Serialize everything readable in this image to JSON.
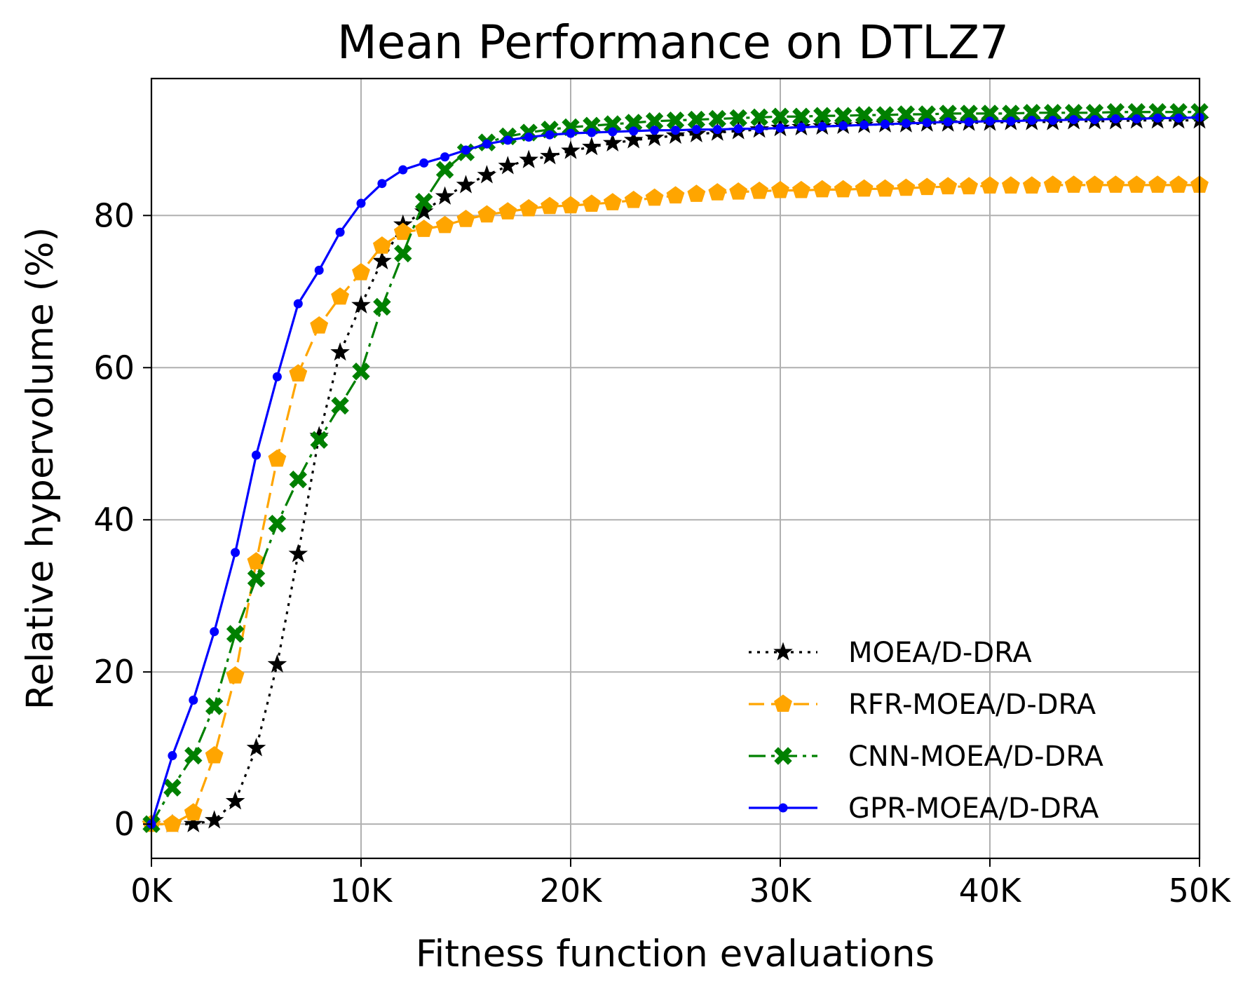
{
  "chart_data": {
    "type": "line",
    "title": "Mean Performance on DTLZ7",
    "xlabel": "Fitness function evaluations",
    "ylabel": "Relative hypervolume (%)",
    "xlim": [
      0,
      50000
    ],
    "ylim": [
      -4.5,
      98
    ],
    "xticks": [
      0,
      10000,
      20000,
      30000,
      40000,
      50000
    ],
    "xtick_labels": [
      "0K",
      "10K",
      "20K",
      "30K",
      "40K",
      "50K"
    ],
    "yticks": [
      0,
      20,
      40,
      60,
      80
    ],
    "ytick_labels": [
      "0",
      "20",
      "40",
      "60",
      "80"
    ],
    "grid": true,
    "legend_position": "lower-right",
    "x": [
      0,
      1000,
      2000,
      3000,
      4000,
      5000,
      6000,
      7000,
      8000,
      9000,
      10000,
      11000,
      12000,
      13000,
      14000,
      15000,
      16000,
      17000,
      18000,
      19000,
      20000,
      21000,
      22000,
      23000,
      24000,
      25000,
      26000,
      27000,
      28000,
      29000,
      30000,
      31000,
      32000,
      33000,
      34000,
      35000,
      36000,
      37000,
      38000,
      39000,
      40000,
      41000,
      42000,
      43000,
      44000,
      45000,
      46000,
      47000,
      48000,
      49000,
      50000
    ],
    "series": [
      {
        "name": "MOEA/D-DRA",
        "color": "#000000",
        "line_style": "dotted",
        "marker": "star",
        "values": [
          0,
          0,
          0,
          0.5,
          3,
          10,
          21,
          35.5,
          51,
          62,
          68.2,
          74,
          78.8,
          80.5,
          82.5,
          84,
          85.3,
          86.5,
          87.3,
          87.8,
          88.5,
          89,
          89.5,
          89.9,
          90.2,
          90.5,
          90.7,
          90.9,
          91.1,
          91.3,
          91.5,
          91.6,
          91.7,
          91.8,
          91.9,
          92,
          92,
          92.1,
          92.1,
          92.2,
          92.2,
          92.3,
          92.3,
          92.3,
          92.4,
          92.4,
          92.4,
          92.5,
          92.5,
          92.5,
          92.5
        ]
      },
      {
        "name": "RFR-MOEA/D-DRA",
        "color": "#FFA500",
        "line_style": "dashed",
        "marker": "pentagon",
        "values": [
          0,
          0,
          1.5,
          9,
          19.5,
          34.5,
          48,
          59.2,
          65.5,
          69.3,
          72.5,
          76,
          77.8,
          78.2,
          78.7,
          79.5,
          80.1,
          80.5,
          80.9,
          81.2,
          81.3,
          81.5,
          81.7,
          82,
          82.3,
          82.6,
          82.8,
          83,
          83.1,
          83.2,
          83.3,
          83.3,
          83.4,
          83.4,
          83.5,
          83.5,
          83.6,
          83.7,
          83.8,
          83.8,
          83.9,
          83.9,
          83.9,
          84,
          84,
          84,
          84,
          84,
          84,
          84,
          84
        ]
      },
      {
        "name": "CNN-MOEA/D-DRA",
        "color": "#008000",
        "line_style": "dashdot",
        "marker": "x-filled",
        "values": [
          0,
          4.8,
          9,
          15.5,
          25,
          32.3,
          39.5,
          45.3,
          50.5,
          55,
          59.5,
          68,
          75,
          81.8,
          86,
          88.3,
          89.6,
          90.4,
          90.9,
          91.3,
          91.6,
          91.8,
          92,
          92.2,
          92.4,
          92.5,
          92.6,
          92.7,
          92.8,
          92.9,
          93,
          93,
          93.1,
          93.1,
          93.2,
          93.2,
          93.3,
          93.3,
          93.4,
          93.4,
          93.4,
          93.4,
          93.5,
          93.5,
          93.5,
          93.5,
          93.6,
          93.6,
          93.6,
          93.6,
          93.6
        ]
      },
      {
        "name": "GPR-MOEA/D-DRA",
        "color": "#0000FF",
        "line_style": "solid",
        "marker": "dot",
        "values": [
          0,
          9,
          16.3,
          25.3,
          35.7,
          48.5,
          58.8,
          68.4,
          72.8,
          77.8,
          81.6,
          84.2,
          86,
          86.9,
          87.7,
          88.6,
          89.4,
          89.9,
          90.3,
          90.6,
          90.8,
          90.9,
          91,
          91.1,
          91.2,
          91.2,
          91.3,
          91.3,
          91.4,
          91.4,
          91.5,
          91.6,
          91.7,
          91.8,
          91.9,
          92,
          92.1,
          92.2,
          92.3,
          92.3,
          92.4,
          92.4,
          92.5,
          92.5,
          92.6,
          92.6,
          92.7,
          92.7,
          92.8,
          92.8,
          92.9
        ]
      }
    ]
  }
}
